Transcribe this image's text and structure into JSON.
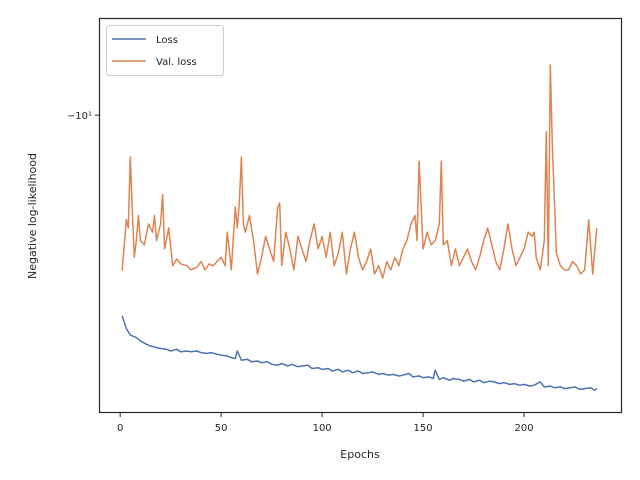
{
  "chart_data": {
    "type": "line",
    "title": "",
    "xlabel": "Epochs",
    "ylabel": "Negative log-likelihood",
    "x_ticks": [
      0,
      50,
      100,
      150,
      200
    ],
    "y_tick_labels": [
      "−10¹"
    ],
    "y_scale": "symlog (negated)",
    "xlim": [
      -10,
      248
    ],
    "ylim": [
      -13.55,
      -8.85
    ],
    "grid": false,
    "legend_position": "top-left",
    "series": [
      {
        "name": "Loss",
        "color": "#4c72b0",
        "x": [
          1,
          3,
          5,
          8,
          10,
          13,
          15,
          18,
          20,
          23,
          25,
          28,
          30,
          33,
          35,
          38,
          40,
          43,
          45,
          48,
          50,
          53,
          55,
          57,
          58,
          60,
          63,
          65,
          68,
          70,
          73,
          75,
          78,
          80,
          83,
          85,
          88,
          90,
          93,
          95,
          98,
          100,
          103,
          105,
          108,
          110,
          113,
          115,
          118,
          120,
          123,
          125,
          128,
          130,
          133,
          135,
          138,
          140,
          143,
          145,
          148,
          150,
          153,
          155,
          156,
          158,
          160,
          163,
          165,
          168,
          170,
          173,
          175,
          178,
          180,
          183,
          185,
          188,
          190,
          193,
          195,
          198,
          200,
          203,
          205,
          208,
          210,
          213,
          215,
          218,
          220,
          223,
          225,
          228,
          230,
          233,
          235,
          236
        ],
        "y": [
          -12.4,
          -12.55,
          -12.63,
          -12.66,
          -12.7,
          -12.74,
          -12.76,
          -12.78,
          -12.79,
          -12.8,
          -12.82,
          -12.8,
          -12.83,
          -12.82,
          -12.83,
          -12.82,
          -12.84,
          -12.85,
          -12.84,
          -12.86,
          -12.87,
          -12.88,
          -12.9,
          -12.91,
          -12.82,
          -12.93,
          -12.92,
          -12.95,
          -12.94,
          -12.96,
          -12.95,
          -12.98,
          -12.99,
          -12.97,
          -13.0,
          -12.98,
          -13.01,
          -13.0,
          -12.99,
          -13.03,
          -13.02,
          -13.04,
          -13.03,
          -13.06,
          -13.04,
          -13.07,
          -13.05,
          -13.08,
          -13.06,
          -13.09,
          -13.08,
          -13.07,
          -13.1,
          -13.09,
          -13.11,
          -13.1,
          -13.12,
          -13.11,
          -13.09,
          -13.13,
          -13.12,
          -13.14,
          -13.13,
          -13.15,
          -13.05,
          -13.16,
          -13.14,
          -13.17,
          -13.15,
          -13.16,
          -13.18,
          -13.16,
          -13.19,
          -13.17,
          -13.2,
          -13.18,
          -13.19,
          -13.21,
          -13.2,
          -13.22,
          -13.21,
          -13.23,
          -13.22,
          -13.24,
          -13.23,
          -13.19,
          -13.25,
          -13.24,
          -13.26,
          -13.25,
          -13.27,
          -13.26,
          -13.25,
          -13.28,
          -13.27,
          -13.26,
          -13.29,
          -13.27
        ]
      },
      {
        "name": "Val. loss",
        "color": "#dd8452",
        "x": [
          1,
          3,
          4,
          5,
          6,
          7,
          8,
          9,
          10,
          12,
          14,
          16,
          17,
          18,
          20,
          21,
          22,
          24,
          26,
          28,
          30,
          33,
          35,
          38,
          40,
          42,
          44,
          46,
          48,
          50,
          52,
          53,
          54,
          55,
          57,
          58,
          59,
          60,
          61,
          62,
          64,
          66,
          68,
          70,
          72,
          74,
          76,
          78,
          79,
          80,
          82,
          84,
          86,
          88,
          90,
          92,
          94,
          96,
          98,
          100,
          102,
          104,
          106,
          108,
          110,
          112,
          114,
          116,
          118,
          120,
          122,
          124,
          126,
          128,
          130,
          132,
          134,
          136,
          138,
          140,
          142,
          144,
          146,
          147,
          148,
          150,
          152,
          154,
          156,
          158,
          159,
          160,
          162,
          164,
          166,
          168,
          170,
          172,
          174,
          176,
          178,
          180,
          182,
          184,
          186,
          188,
          190,
          192,
          194,
          196,
          198,
          200,
          202,
          204,
          205,
          206,
          208,
          210,
          211,
          212,
          213,
          214,
          216,
          218,
          220,
          222,
          224,
          226,
          228,
          230,
          232,
          234,
          236
        ],
        "y": [
          -11.86,
          -11.25,
          -11.35,
          -10.5,
          -11.15,
          -11.7,
          -11.5,
          -11.2,
          -11.5,
          -11.55,
          -11.3,
          -11.4,
          -11.2,
          -11.5,
          -11.3,
          -10.95,
          -11.6,
          -11.35,
          -11.8,
          -11.72,
          -11.78,
          -11.8,
          -11.85,
          -11.82,
          -11.75,
          -11.85,
          -11.78,
          -11.8,
          -11.75,
          -11.7,
          -11.8,
          -11.4,
          -11.6,
          -11.85,
          -11.1,
          -11.35,
          -11.05,
          -10.5,
          -11.3,
          -11.4,
          -11.2,
          -11.5,
          -11.9,
          -11.7,
          -11.45,
          -11.6,
          -11.75,
          -11.1,
          -11.05,
          -11.8,
          -11.4,
          -11.6,
          -11.85,
          -11.45,
          -11.6,
          -11.75,
          -11.5,
          -11.3,
          -11.6,
          -11.45,
          -11.7,
          -11.4,
          -11.8,
          -11.65,
          -11.4,
          -11.9,
          -11.6,
          -11.4,
          -11.7,
          -11.85,
          -11.75,
          -11.6,
          -11.9,
          -11.8,
          -11.95,
          -11.75,
          -11.85,
          -11.7,
          -11.8,
          -11.6,
          -11.5,
          -11.3,
          -11.2,
          -11.5,
          -10.55,
          -11.6,
          -11.4,
          -11.55,
          -11.5,
          -11.3,
          -10.55,
          -11.55,
          -11.5,
          -11.8,
          -11.6,
          -11.8,
          -11.7,
          -11.6,
          -11.75,
          -11.85,
          -11.7,
          -11.5,
          -11.35,
          -11.55,
          -11.75,
          -11.85,
          -11.6,
          -11.3,
          -11.6,
          -11.8,
          -11.7,
          -11.6,
          -11.4,
          -11.45,
          -11.4,
          -11.7,
          -11.85,
          -11.5,
          -10.2,
          -11.8,
          -9.4,
          -10.35,
          -11.65,
          -11.8,
          -11.85,
          -11.85,
          -11.75,
          -11.8,
          -11.9,
          -11.85,
          -11.25,
          -11.9,
          -11.35
        ]
      }
    ]
  }
}
